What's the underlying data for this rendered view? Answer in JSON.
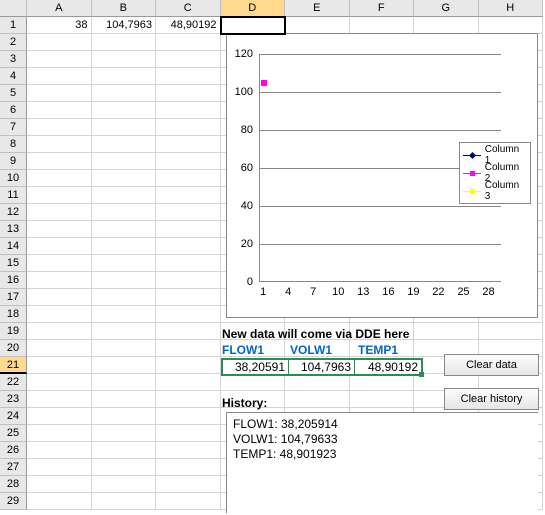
{
  "columns": [
    "A",
    "B",
    "C",
    "D",
    "E",
    "F",
    "G",
    "H"
  ],
  "rows_count": 29,
  "active_col_index": 3,
  "active_row_index": 0,
  "selected_row_header": 21,
  "row1": {
    "A": "38",
    "B": "104,7963",
    "C": "48,90192"
  },
  "chart": {
    "type": "line",
    "y_ticks": [
      0,
      20,
      40,
      60,
      80,
      100,
      120
    ],
    "ylim": [
      0,
      120
    ],
    "x_ticks": [
      1,
      4,
      7,
      10,
      13,
      16,
      19,
      22,
      25,
      28
    ],
    "xlim": [
      0.5,
      29.5
    ],
    "gridline_color": "#888888",
    "border_color": "#888888",
    "background_color": "#ffffff",
    "tick_fontsize": 11,
    "series": [
      {
        "name": "Column 1",
        "color": "#000080",
        "marker": "diamond",
        "points": []
      },
      {
        "name": "Column 2",
        "color": "#ff00ff",
        "marker": "square",
        "points": [
          [
            1,
            104.8
          ]
        ]
      },
      {
        "name": "Column 3",
        "color": "#ffff00",
        "marker": "triangle",
        "points": []
      }
    ],
    "legend": {
      "position": "right-middle",
      "fontsize": 10,
      "border_color": "#888888"
    }
  },
  "dde": {
    "header": "New data will come via DDE here",
    "tags": [
      "FLOW1",
      "VOLW1",
      "TEMP1"
    ],
    "tag_color": "#0066cc",
    "values": [
      "38,20591",
      "104,7963",
      "48,90192"
    ],
    "border_color": "#2e8b57"
  },
  "buttons": {
    "clear_data": "Clear data",
    "clear_history": "Clear history"
  },
  "history": {
    "label": "History:",
    "lines": [
      "FLOW1: 38,205914",
      "VOLW1: 104,79633",
      "TEMP1: 48,901923"
    ]
  }
}
